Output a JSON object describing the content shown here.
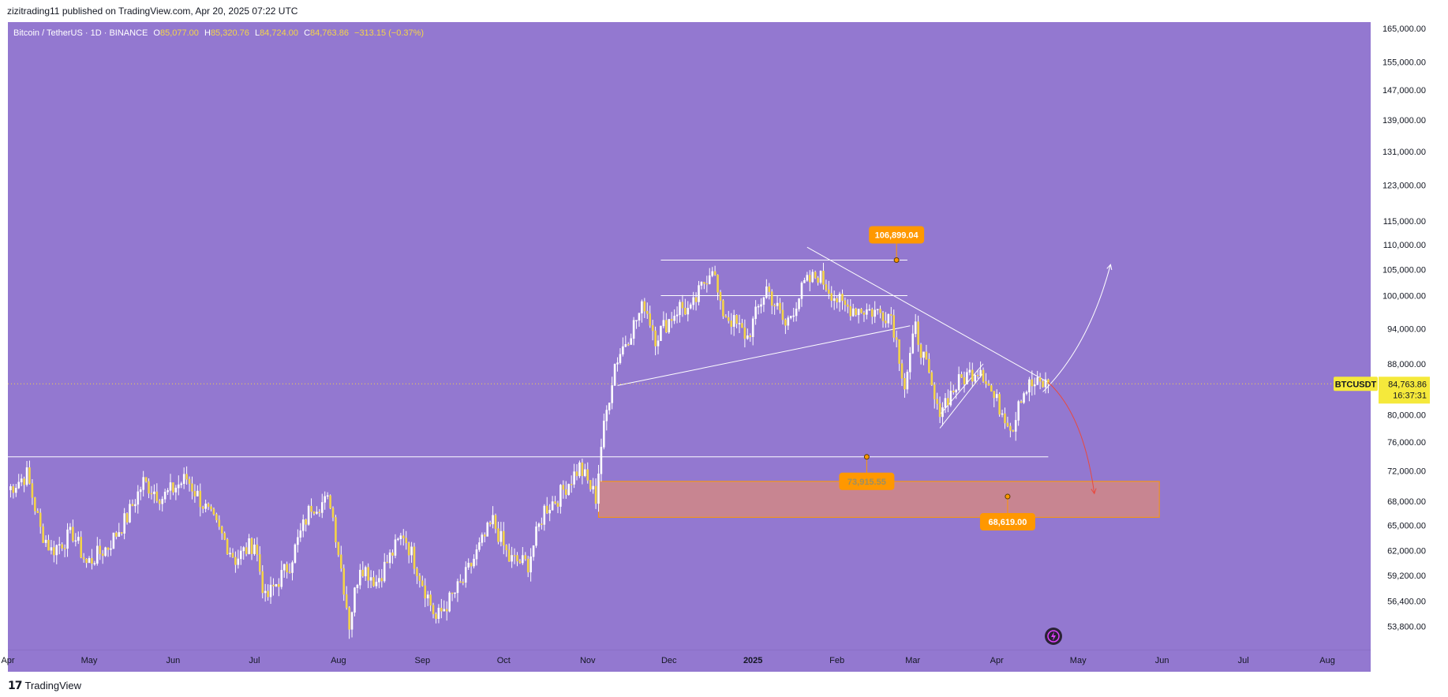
{
  "header": {
    "publisher_line": "zizitrading11 published on TradingView.com, Apr 20, 2025 07:22 UTC"
  },
  "legend": {
    "symbol": "Bitcoin / TetherUS · 1D · BINANCE",
    "open_label": "O",
    "open": "85,077.00",
    "high_label": "H",
    "high": "85,320.76",
    "low_label": "L",
    "low": "84,724.00",
    "close_label": "C",
    "close": "84,763.86",
    "change": "−313.15 (−0.37%)"
  },
  "price_badge": {
    "ticker": "BTCUSDT",
    "price": "84,763.86",
    "countdown": "16:37:31"
  },
  "annotations": {
    "peak_label": "106,899.04",
    "support_label": "73,915.55",
    "target_label": "68,619.00"
  },
  "footer": {
    "brand": "TradingView"
  },
  "colors": {
    "background": "#9378d0",
    "candle": "#f5d547",
    "candle_wick": "#ffffff",
    "label_orange": "#ff9800",
    "zone_fill": "#d98a7c",
    "zone_border": "#ff9800",
    "badge_yellow": "#f5e93b",
    "down_arrow": "#e84a3f",
    "up_arrow": "#ffffff"
  },
  "chart_data": {
    "type": "candlestick",
    "symbol": "BTCUSDT",
    "exchange": "BINANCE",
    "timeframe": "1D",
    "y_scale": "log",
    "ylim": [
      51500,
      167000
    ],
    "y_ticks": [
      165000,
      155000,
      147000,
      139000,
      131000,
      123000,
      115000,
      110000,
      105000,
      100000,
      94000,
      88000,
      80000,
      76000,
      72000,
      68000,
      65000,
      62000,
      59200,
      56400,
      53800
    ],
    "y_tick_labels": [
      "165,000.00",
      "155,000.00",
      "147,000.00",
      "139,000.00",
      "131,000.00",
      "123,000.00",
      "115,000.00",
      "110,000.00",
      "105,000.00",
      "100,000.00",
      "94,000.00",
      "88,000.00",
      "80,000.00",
      "76,000.00",
      "72,000.00",
      "68,000.00",
      "65,000.00",
      "62,000.00",
      "59,200.00",
      "56,400.00",
      "53,800.00"
    ],
    "xlim": [
      "2024-04-01",
      "2025-08-17"
    ],
    "x_ticks": [
      {
        "date": "2024-04-01",
        "label": "Apr"
      },
      {
        "date": "2024-05-01",
        "label": "May"
      },
      {
        "date": "2024-06-01",
        "label": "Jun"
      },
      {
        "date": "2024-07-01",
        "label": "Jul"
      },
      {
        "date": "2024-08-01",
        "label": "Aug"
      },
      {
        "date": "2024-09-01",
        "label": "Sep"
      },
      {
        "date": "2024-10-01",
        "label": "Oct"
      },
      {
        "date": "2024-11-01",
        "label": "Nov"
      },
      {
        "date": "2024-12-01",
        "label": "Dec"
      },
      {
        "date": "2025-01-01",
        "label": "2025"
      },
      {
        "date": "2025-02-01",
        "label": "Feb"
      },
      {
        "date": "2025-03-01",
        "label": "Mar"
      },
      {
        "date": "2025-04-01",
        "label": "Apr"
      },
      {
        "date": "2025-05-01",
        "label": "May"
      },
      {
        "date": "2025-06-01",
        "label": "Jun"
      },
      {
        "date": "2025-07-01",
        "label": "Jul"
      },
      {
        "date": "2025-08-01",
        "label": "Aug"
      }
    ],
    "last_price": 84763.86,
    "anchors": [
      [
        "2024-04-01",
        69500
      ],
      [
        "2024-04-08",
        71500
      ],
      [
        "2024-04-13",
        64500
      ],
      [
        "2024-04-17",
        62000
      ],
      [
        "2024-04-25",
        64000
      ],
      [
        "2024-04-30",
        60500
      ],
      [
        "2024-05-08",
        62500
      ],
      [
        "2024-05-15",
        66000
      ],
      [
        "2024-05-21",
        70500
      ],
      [
        "2024-05-28",
        68500
      ],
      [
        "2024-06-06",
        71000
      ],
      [
        "2024-06-14",
        66500
      ],
      [
        "2024-06-24",
        61000
      ],
      [
        "2024-07-01",
        63000
      ],
      [
        "2024-07-05",
        56500
      ],
      [
        "2024-07-14",
        60500
      ],
      [
        "2024-07-22",
        67500
      ],
      [
        "2024-07-29",
        68000
      ],
      [
        "2024-08-05",
        54000
      ],
      [
        "2024-08-09",
        60500
      ],
      [
        "2024-08-15",
        58500
      ],
      [
        "2024-08-25",
        64000
      ],
      [
        "2024-09-06",
        54500
      ],
      [
        "2024-09-16",
        58500
      ],
      [
        "2024-09-27",
        65500
      ],
      [
        "2024-10-03",
        61000
      ],
      [
        "2024-10-10",
        60500
      ],
      [
        "2024-10-16",
        67000
      ],
      [
        "2024-10-21",
        68500
      ],
      [
        "2024-10-29",
        72500
      ],
      [
        "2024-11-04",
        68500
      ],
      [
        "2024-11-06",
        75500
      ],
      [
        "2024-11-11",
        88000
      ],
      [
        "2024-11-22",
        98500
      ],
      [
        "2024-11-26",
        92500
      ],
      [
        "2024-12-05",
        98000
      ],
      [
        "2024-12-09",
        97000
      ],
      [
        "2024-12-17",
        106000
      ],
      [
        "2024-12-20",
        97500
      ],
      [
        "2024-12-30",
        92500
      ],
      [
        "2025-01-06",
        101500
      ],
      [
        "2025-01-13",
        94500
      ],
      [
        "2025-01-20",
        102000
      ],
      [
        "2025-01-25",
        104000
      ],
      [
        "2025-02-03",
        98000
      ],
      [
        "2025-02-10",
        97500
      ],
      [
        "2025-02-21",
        96500
      ],
      [
        "2025-02-26",
        84500
      ],
      [
        "2025-03-02",
        94000
      ],
      [
        "2025-03-10",
        80500
      ],
      [
        "2025-03-19",
        85500
      ],
      [
        "2025-03-26",
        87500
      ],
      [
        "2025-03-31",
        82500
      ],
      [
        "2025-04-07",
        78000
      ],
      [
        "2025-04-09",
        82500
      ],
      [
        "2025-04-13",
        84500
      ],
      [
        "2025-04-20",
        84763.86
      ]
    ],
    "trend_lines": [
      {
        "from": [
          "2024-04-01",
          73915.55
        ],
        "to": [
          "2025-04-20",
          73915.55
        ]
      },
      {
        "from": [
          "2024-11-28",
          106899.04
        ],
        "to": [
          "2025-02-27",
          106899.04
        ]
      },
      {
        "from": [
          "2024-11-28",
          100000
        ],
        "to": [
          "2025-02-27",
          100000
        ]
      },
      {
        "from": [
          "2024-11-12",
          84500
        ],
        "to": [
          "2025-02-28",
          94500
        ]
      },
      {
        "from": [
          "2025-01-21",
          109500
        ],
        "to": [
          "2025-04-20",
          85000
        ]
      },
      {
        "from": [
          "2025-03-11",
          80000
        ],
        "to": [
          "2025-03-27",
          88000
        ]
      },
      {
        "from": [
          "2025-03-11",
          78000
        ],
        "to": [
          "2025-03-27",
          86500
        ]
      }
    ],
    "zone": {
      "from": "2024-11-05",
      "to": "2025-05-31",
      "low": 66000,
      "high": 70600
    },
    "markers": [
      {
        "date": "2025-02-23",
        "price": 106899.04,
        "label": "106,899.04"
      },
      {
        "date": "2025-02-12",
        "price": 73915.55,
        "label": "73,915.55"
      },
      {
        "date": "2025-04-05",
        "price": 68619.0,
        "label": "68,619.00"
      }
    ],
    "projection_up": [
      [
        "2025-04-18",
        83500
      ],
      [
        "2025-05-05",
        91000
      ],
      [
        "2025-05-13",
        106000
      ]
    ],
    "projection_down": [
      [
        "2025-04-20",
        85000
      ],
      [
        "2025-05-03",
        80000
      ],
      [
        "2025-05-07",
        69000
      ]
    ]
  }
}
